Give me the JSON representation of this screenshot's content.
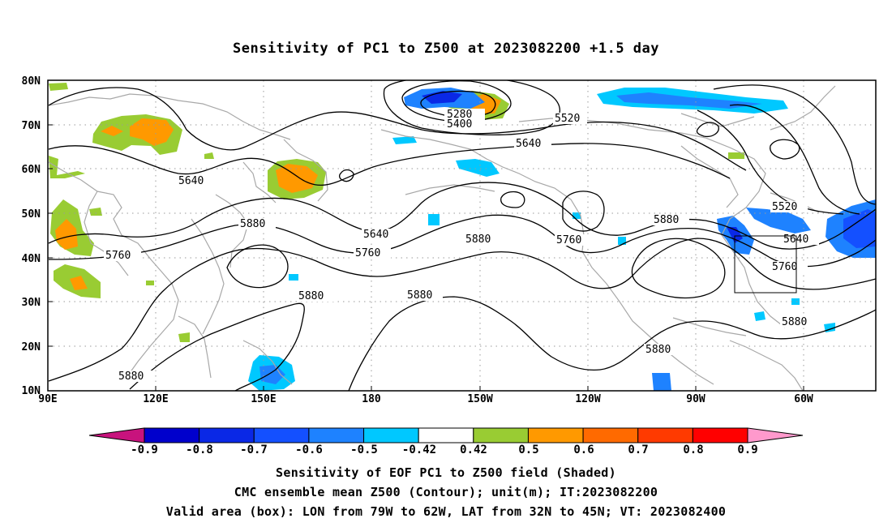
{
  "title": "Sensitivity of PC1 to Z500 at 2023082200 +1.5 day",
  "lat_labels": [
    "80N",
    "70N",
    "60N",
    "50N",
    "40N",
    "30N",
    "20N",
    "10N"
  ],
  "lon_labels": [
    "90E",
    "120E",
    "150E",
    "180",
    "150W",
    "120W",
    "90W",
    "60W"
  ],
  "contour_labels": [
    "5280",
    "5400",
    "5520",
    "5640",
    "5640",
    "5640",
    "5520",
    "5640",
    "5760",
    "5760",
    "5880",
    "5760",
    "5880",
    "5880",
    "5880",
    "5880",
    "5880",
    "5760",
    "5880"
  ],
  "colorbar_labels": [
    "-0.9",
    "-0.8",
    "-0.7",
    "-0.6",
    "-0.5",
    "-0.42",
    "0.42",
    "0.5",
    "0.6",
    "0.7",
    "0.8",
    "0.9"
  ],
  "colorbar_colors": [
    "#c8137d",
    "#0000cc",
    "#0a28e6",
    "#1450ff",
    "#1e82ff",
    "#00c8ff",
    "#ffffff",
    "#99cc33",
    "#ff9900",
    "#ff6a00",
    "#ff3a00",
    "#ff0000",
    "#ff99cc"
  ],
  "captions": {
    "line1": "Sensitivity of EOF PC1 to Z500 field (Shaded)",
    "line2": "CMC ensemble mean Z500 (Contour); unit(m); IT:2023082200",
    "line3": "Valid area (box): LON from 79W to 62W, LAT from 32N to 45N; VT: 2023082400"
  },
  "valid_box": {
    "lon_min": "79W",
    "lon_max": "62W",
    "lat_min": "32N",
    "lat_max": "45N"
  }
}
